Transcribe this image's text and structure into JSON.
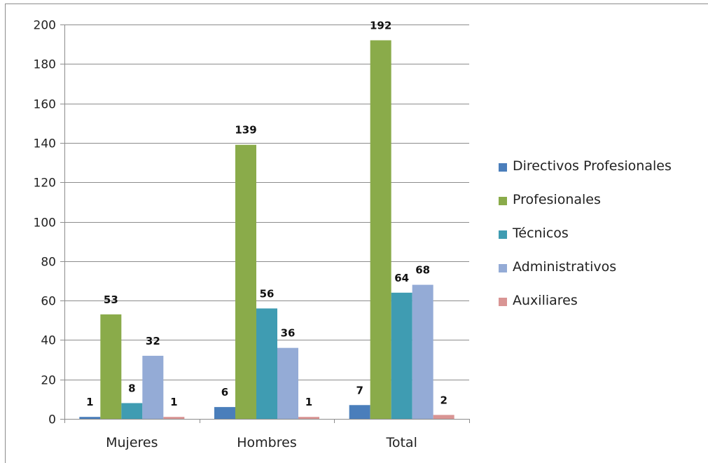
{
  "chart_data": {
    "type": "bar",
    "categories": [
      "Mujeres",
      "Hombres",
      "Total"
    ],
    "series": [
      {
        "name": "Directivos Profesionales",
        "values": [
          1,
          6,
          7
        ],
        "color": "#4A7EBB"
      },
      {
        "name": "Profesionales",
        "values": [
          53,
          139,
          192
        ],
        "color": "#8AAB4A"
      },
      {
        "name": "Técnicos",
        "values": [
          8,
          56,
          64
        ],
        "color": "#3F9CB2"
      },
      {
        "name": "Administrativos",
        "values": [
          32,
          36,
          68
        ],
        "color": "#94ABD6"
      },
      {
        "name": "Auxiliares",
        "values": [
          1,
          1,
          2
        ],
        "color": "#D99594"
      }
    ],
    "y_ticks": [
      "0",
      "20",
      "40",
      "60",
      "80",
      "100",
      "120",
      "140",
      "160",
      "180",
      "200"
    ],
    "ylim": [
      0,
      200
    ],
    "grid": true,
    "legend_position": "right",
    "data_labels": true
  }
}
